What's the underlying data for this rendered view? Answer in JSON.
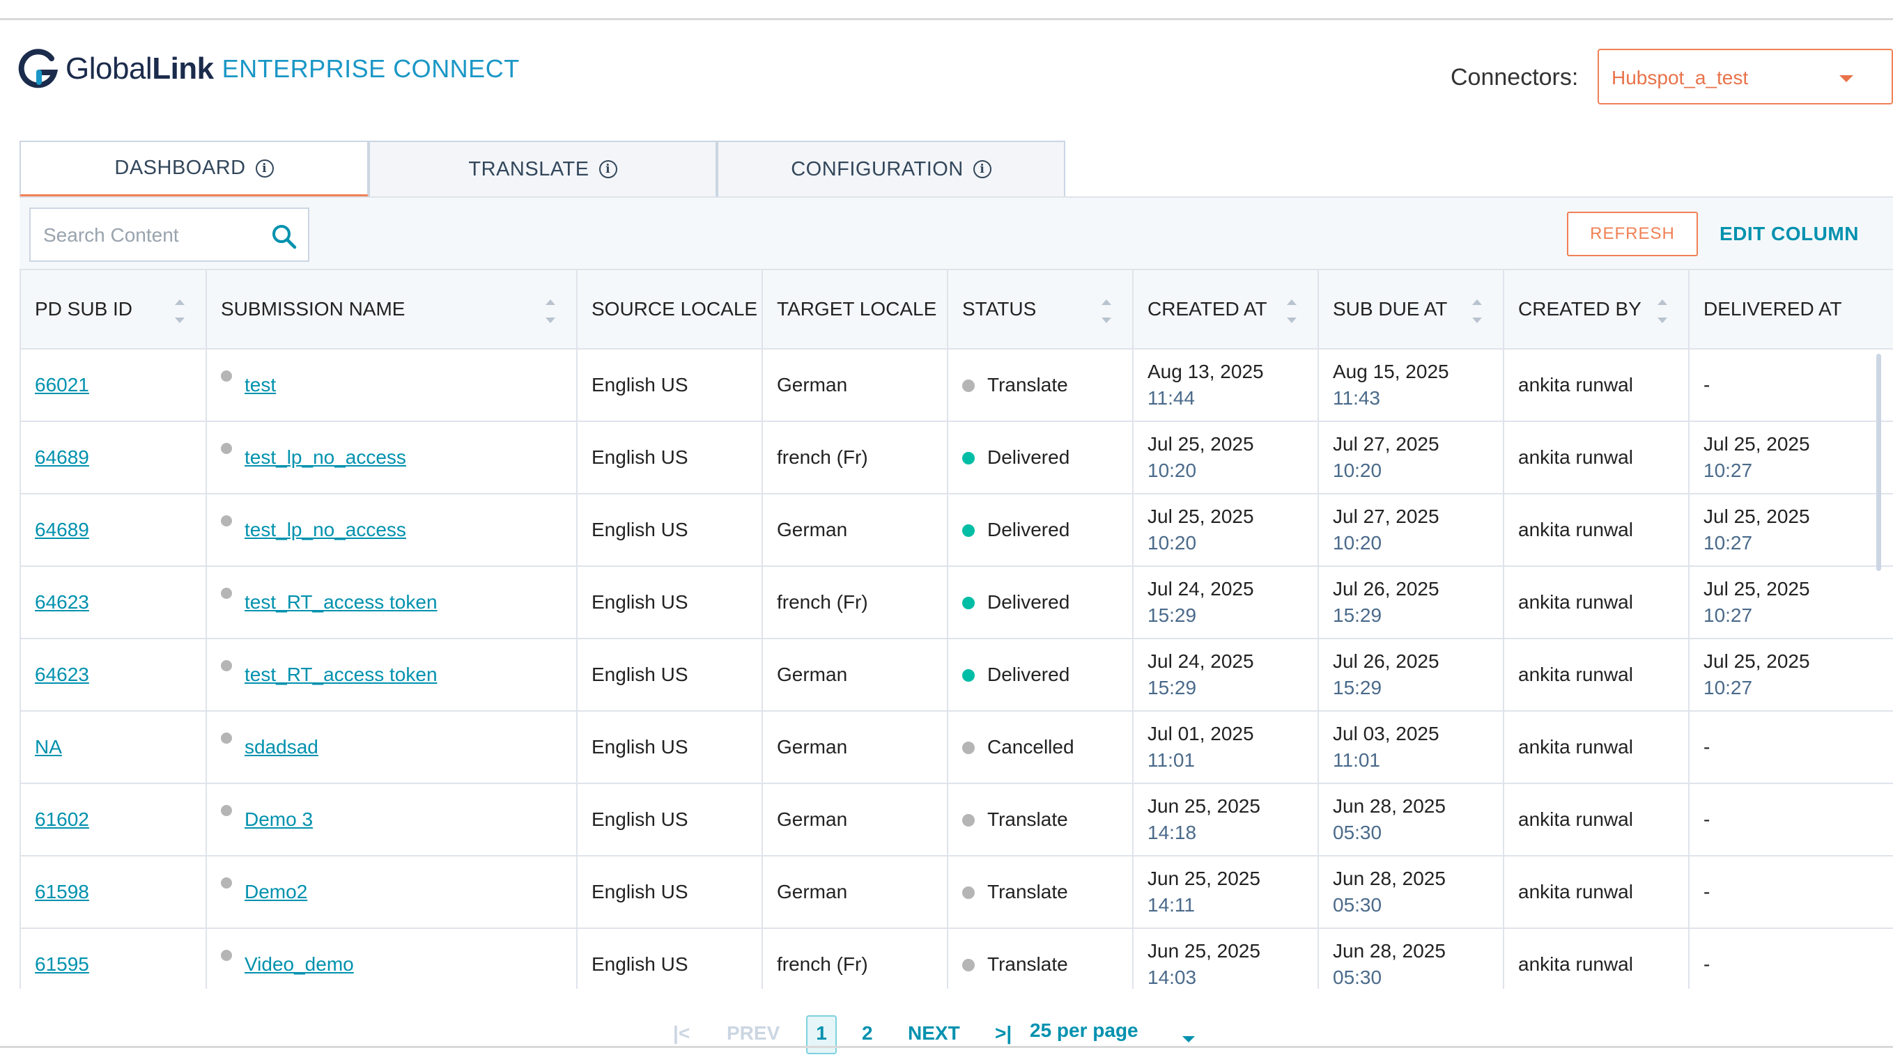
{
  "header": {
    "logo_word_light": "Global",
    "logo_word_bold": "Link",
    "logo_sub": "ENTERPRISE CONNECT",
    "connectors_label": "Connectors:",
    "connector_value": "Hubspot_a_test"
  },
  "tabs": [
    {
      "label": "DASHBOARD",
      "active": true
    },
    {
      "label": "TRANSLATE",
      "active": false
    },
    {
      "label": "CONFIGURATION",
      "active": false
    }
  ],
  "toolbar": {
    "search_placeholder": "Search Content",
    "refresh_label": "REFRESH",
    "edit_column_label": "EDIT COLUMN"
  },
  "table": {
    "columns": [
      "PD SUB ID",
      "SUBMISSION NAME",
      "SOURCE LOCALE",
      "TARGET LOCALE",
      "STATUS",
      "CREATED AT",
      "SUB DUE AT",
      "CREATED BY",
      "DELIVERED AT"
    ],
    "rows": [
      {
        "id": "66021",
        "name": "test",
        "source": "English US",
        "target": "German",
        "status": "Translate",
        "created_date": "Aug 13, 2025",
        "created_time": "11:44",
        "due_date": "Aug 15, 2025",
        "due_time": "11:43",
        "by": "ankita runwal",
        "delivered_date": "-",
        "delivered_time": ""
      },
      {
        "id": "64689",
        "name": "test_lp_no_access",
        "source": "English US",
        "target": "french (Fr)",
        "status": "Delivered",
        "created_date": "Jul 25, 2025",
        "created_time": "10:20",
        "due_date": "Jul 27, 2025",
        "due_time": "10:20",
        "by": "ankita runwal",
        "delivered_date": "Jul 25, 2025",
        "delivered_time": "10:27"
      },
      {
        "id": "64689",
        "name": "test_lp_no_access",
        "source": "English US",
        "target": "German",
        "status": "Delivered",
        "created_date": "Jul 25, 2025",
        "created_time": "10:20",
        "due_date": "Jul 27, 2025",
        "due_time": "10:20",
        "by": "ankita runwal",
        "delivered_date": "Jul 25, 2025",
        "delivered_time": "10:27"
      },
      {
        "id": "64623",
        "name": "test_RT_access token",
        "source": "English US",
        "target": "french (Fr)",
        "status": "Delivered",
        "created_date": "Jul 24, 2025",
        "created_time": "15:29",
        "due_date": "Jul 26, 2025",
        "due_time": "15:29",
        "by": "ankita runwal",
        "delivered_date": "Jul 25, 2025",
        "delivered_time": "10:27"
      },
      {
        "id": "64623",
        "name": "test_RT_access token",
        "source": "English US",
        "target": "German",
        "status": "Delivered",
        "created_date": "Jul 24, 2025",
        "created_time": "15:29",
        "due_date": "Jul 26, 2025",
        "due_time": "15:29",
        "by": "ankita runwal",
        "delivered_date": "Jul 25, 2025",
        "delivered_time": "10:27"
      },
      {
        "id": "NA",
        "name": "sdadsad",
        "source": "English US",
        "target": "German",
        "status": "Cancelled",
        "created_date": "Jul 01, 2025",
        "created_time": "11:01",
        "due_date": "Jul 03, 2025",
        "due_time": "11:01",
        "by": "ankita runwal",
        "delivered_date": "-",
        "delivered_time": ""
      },
      {
        "id": "61602",
        "name": "Demo 3",
        "source": "English US",
        "target": "German",
        "status": "Translate",
        "created_date": "Jun 25, 2025",
        "created_time": "14:18",
        "due_date": "Jun 28, 2025",
        "due_time": "05:30",
        "by": "ankita runwal",
        "delivered_date": "-",
        "delivered_time": ""
      },
      {
        "id": "61598",
        "name": "Demo2",
        "source": "English US",
        "target": "German",
        "status": "Translate",
        "created_date": "Jun 25, 2025",
        "created_time": "14:11",
        "due_date": "Jun 28, 2025",
        "due_time": "05:30",
        "by": "ankita runwal",
        "delivered_date": "-",
        "delivered_time": ""
      },
      {
        "id": "61595",
        "name": "Video_demo",
        "source": "English US",
        "target": "french (Fr)",
        "status": "Translate",
        "created_date": "Jun 25, 2025",
        "created_time": "14:03",
        "due_date": "Jun 28, 2025",
        "due_time": "05:30",
        "by": "ankita runwal",
        "delivered_date": "-",
        "delivered_time": ""
      }
    ]
  },
  "status_colors": {
    "Translate": "#b5b5b5",
    "Delivered": "#00bda5",
    "Cancelled": "#b5b5b5"
  },
  "pagination": {
    "first": "|<",
    "prev": "PREV",
    "current": "1",
    "page2": "2",
    "next": "NEXT",
    "last": ">|",
    "per_page": "25 per page"
  }
}
